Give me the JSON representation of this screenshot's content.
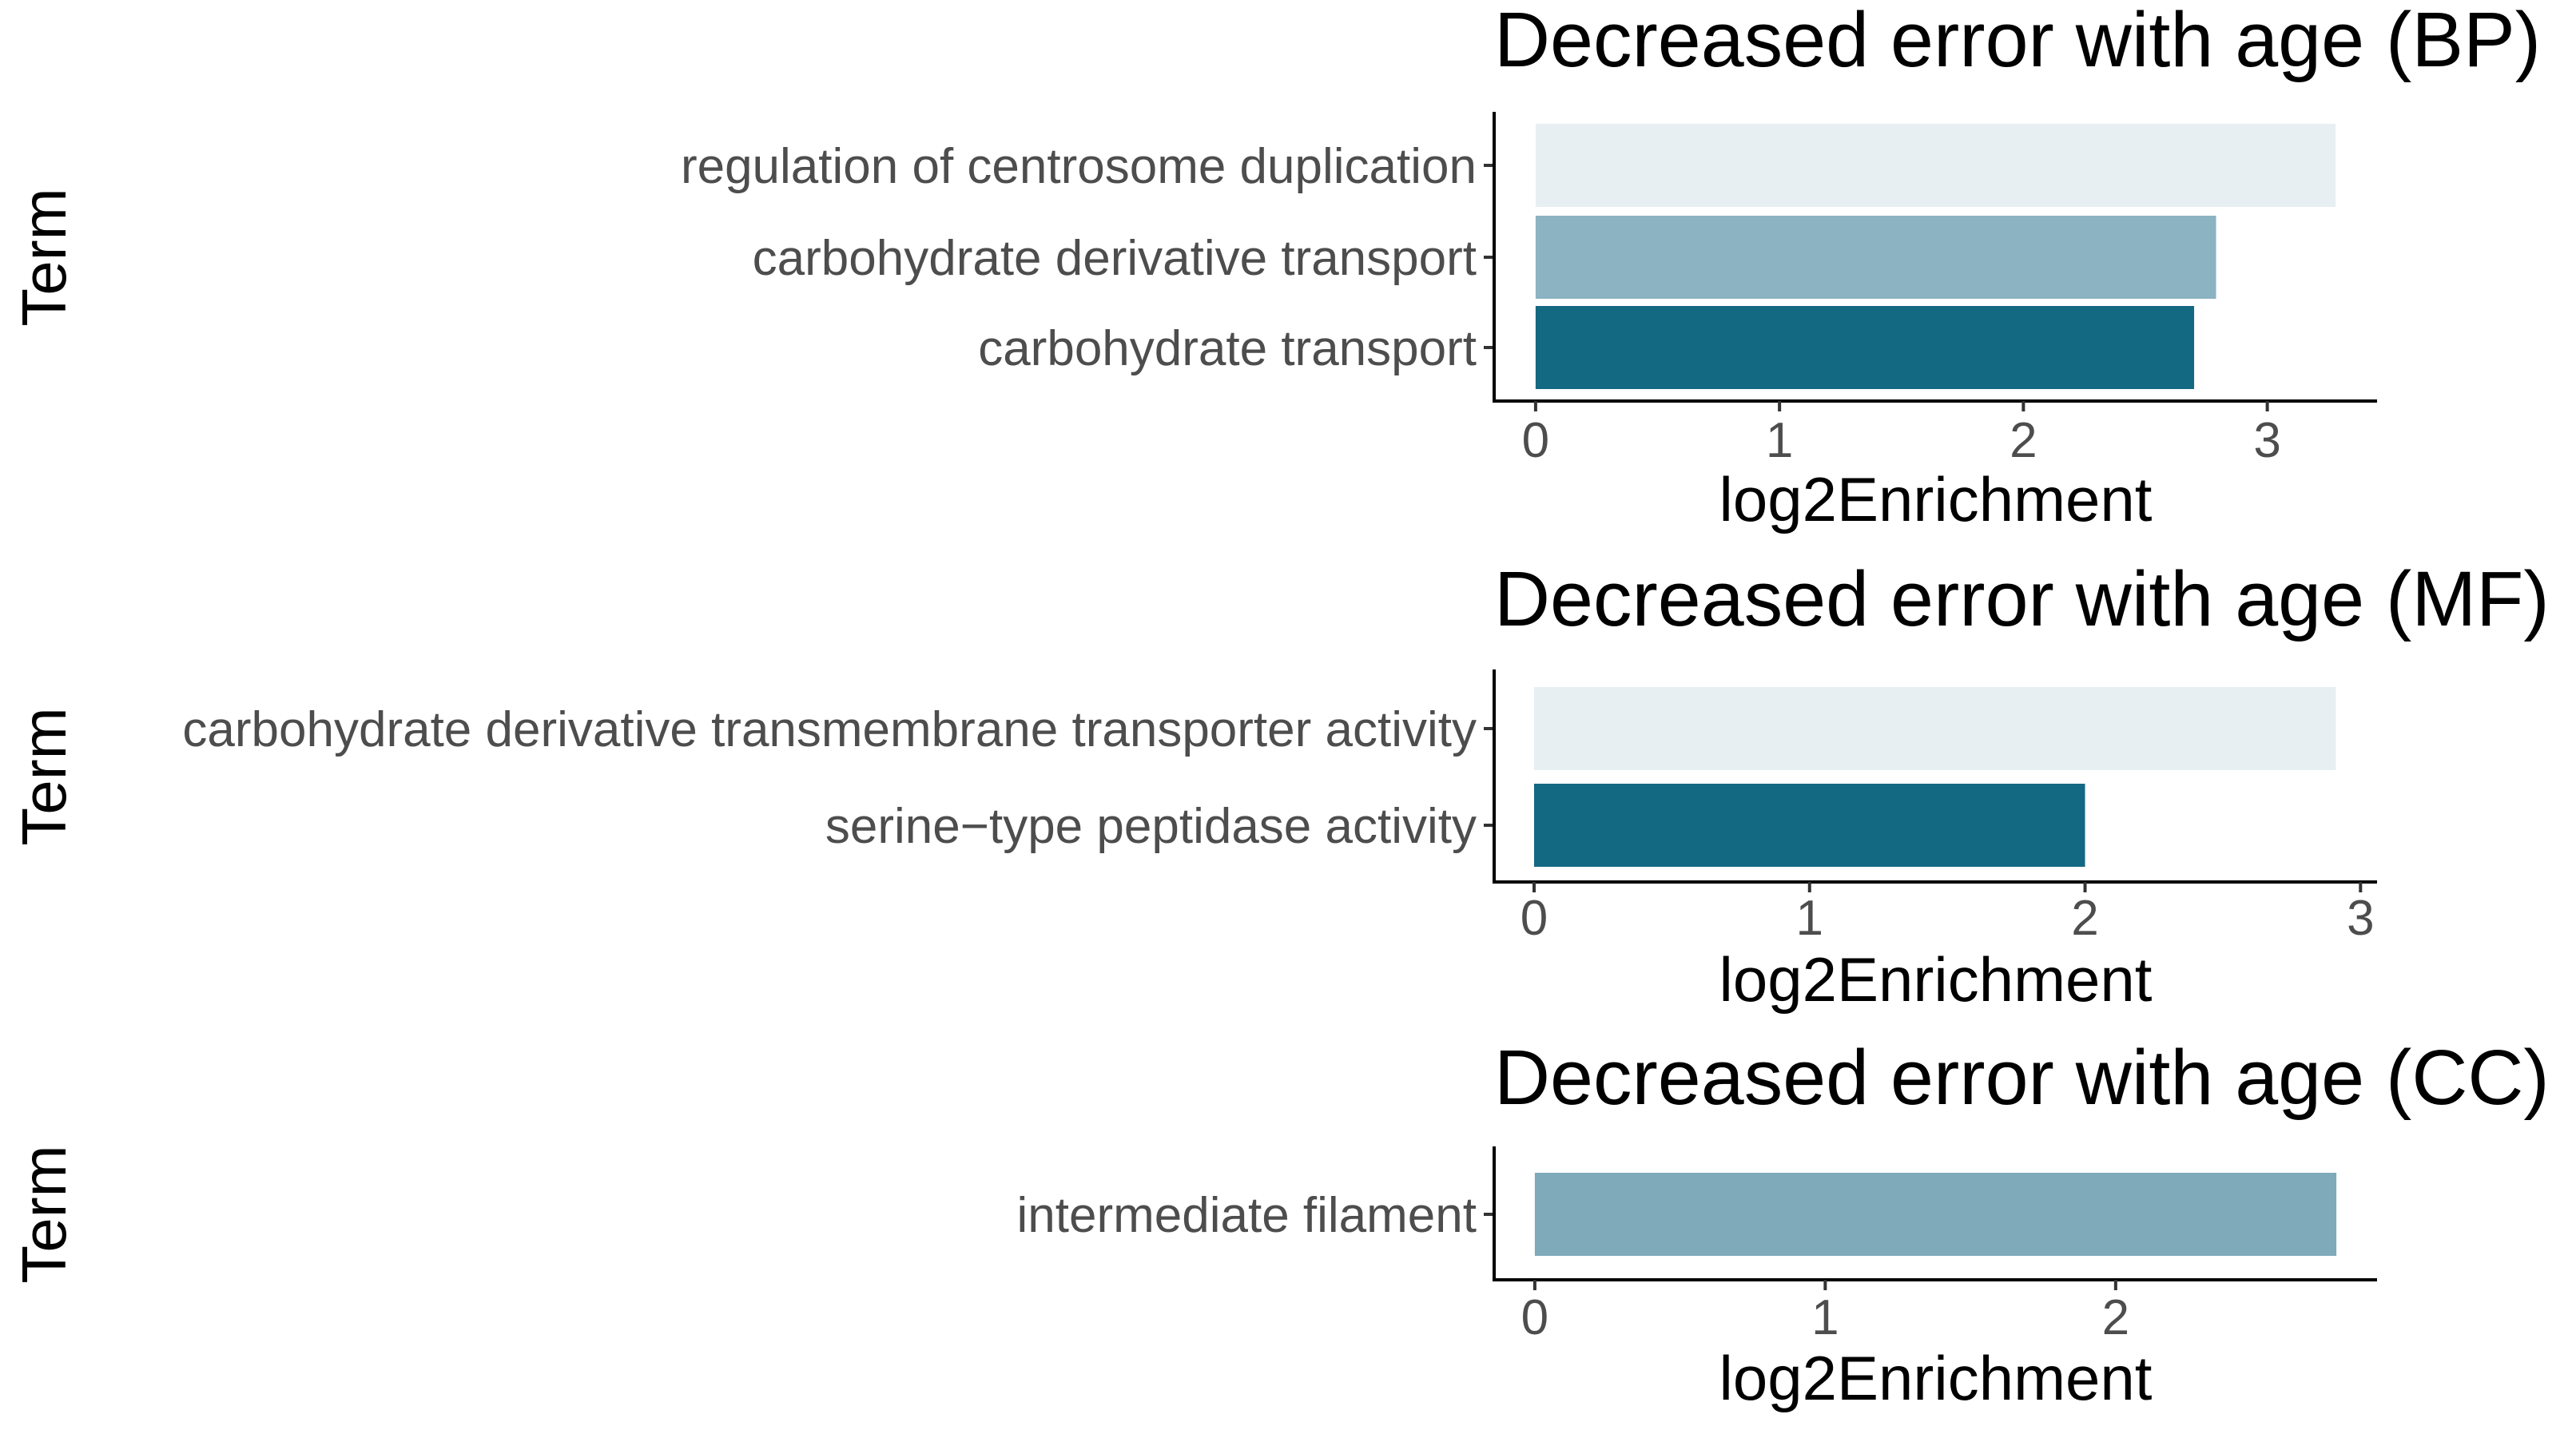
{
  "chart_data": [
    {
      "type": "bar",
      "orientation": "horizontal",
      "title": "Decreased error with age (BP)",
      "xlabel": "log2Enrichment",
      "ylabel": "Term",
      "categories": [
        "regulation of centrosome duplication",
        "carbohydrate derivative transport",
        "carbohydrate transport"
      ],
      "values": [
        3.28,
        2.79,
        2.7
      ],
      "colors": [
        "#e7eff2",
        "#8bb3c2",
        "#136882"
      ],
      "xticks": [
        0,
        1,
        2,
        3
      ],
      "xlim": [
        -0.17,
        3.45
      ],
      "grid": false,
      "legend": "none"
    },
    {
      "type": "bar",
      "orientation": "horizontal",
      "title": "Decreased error with age (MF)",
      "xlabel": "log2Enrichment",
      "ylabel": "Term",
      "categories": [
        "carbohydrate derivative transmembrane transporter activity",
        "serine−type peptidase activity"
      ],
      "values": [
        2.91,
        2.0
      ],
      "colors": [
        "#e7eff2",
        "#136882"
      ],
      "xticks": [
        0,
        1,
        2,
        3
      ],
      "xlim": [
        -0.145,
        3.06
      ],
      "grid": false,
      "legend": "none"
    },
    {
      "type": "bar",
      "orientation": "horizontal",
      "title": "Decreased error with age (CC)",
      "xlabel": "log2Enrichment",
      "ylabel": "Term",
      "categories": [
        "intermediate filament"
      ],
      "values": [
        2.76
      ],
      "colors": [
        "#7eaab9"
      ],
      "xticks": [
        0,
        1,
        2
      ],
      "xlim": [
        -0.14,
        2.9
      ],
      "grid": false,
      "legend": "none"
    }
  ]
}
